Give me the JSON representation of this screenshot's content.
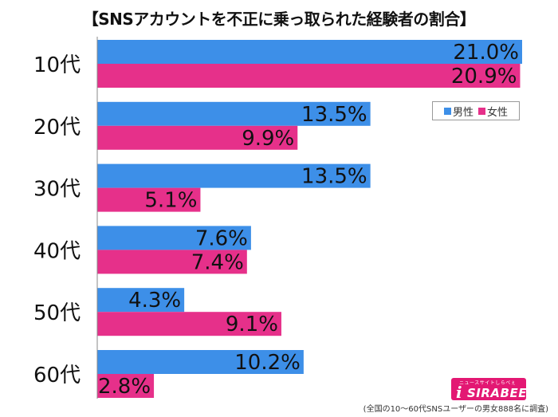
{
  "title": "【SNSアカウントを不正に乗っ取られた経験者の割合】",
  "footnote": "(全国の10〜60代SNSユーザーの男女888名に調査)",
  "logo": {
    "tagline": "ニュースサイトしらべぇ",
    "brand": "SIRABEE"
  },
  "legend": {
    "male": "男性",
    "female": "女性"
  },
  "colors": {
    "male": "#3d8fe8",
    "female": "#e6308a",
    "axis": "#888888",
    "label_text": "#111111"
  },
  "chart_data": {
    "type": "bar",
    "orientation": "horizontal",
    "categories": [
      "10代",
      "20代",
      "30代",
      "40代",
      "50代",
      "60代"
    ],
    "series": [
      {
        "name": "男性",
        "values": [
          21.0,
          13.5,
          13.5,
          7.6,
          4.3,
          10.2
        ],
        "labels": [
          "21.0%",
          "13.5%",
          "13.5%",
          "7.6%",
          "4.3%",
          "10.2%"
        ]
      },
      {
        "name": "女性",
        "values": [
          20.9,
          9.9,
          5.1,
          7.4,
          9.1,
          2.8
        ],
        "labels": [
          "20.9%",
          "9.9%",
          "5.1%",
          "7.4%",
          "9.1%",
          "2.8%"
        ]
      }
    ],
    "xlim": [
      0,
      21.0
    ],
    "legend_position": "top-right",
    "grid": false
  }
}
